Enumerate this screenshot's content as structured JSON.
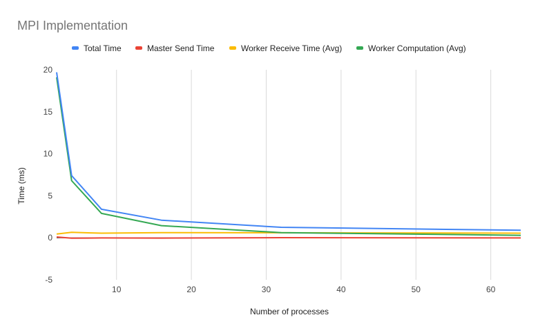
{
  "chart_data": {
    "type": "line",
    "title": "MPI Implementation",
    "xlabel": "Number of processes",
    "ylabel": "Time (ms)",
    "xlim": [
      2,
      64
    ],
    "ylim": [
      -5,
      20
    ],
    "x_ticks": [
      10,
      20,
      30,
      40,
      50,
      60
    ],
    "y_ticks": [
      -5,
      0,
      5,
      10,
      15,
      20
    ],
    "grid": "vertical",
    "legend_position": "top",
    "x": [
      2,
      4,
      8,
      16,
      32,
      64
    ],
    "series": [
      {
        "name": "Total Time",
        "color": "#4285f4",
        "values": [
          19.7,
          7.4,
          3.4,
          2.1,
          1.25,
          0.9
        ]
      },
      {
        "name": "Master Send Time",
        "color": "#ea4335",
        "values": [
          0.1,
          -0.05,
          -0.02,
          -0.03,
          0.02,
          -0.02
        ]
      },
      {
        "name": "Worker Receive Time (Avg)",
        "color": "#fbbc04",
        "values": [
          0.45,
          0.65,
          0.55,
          0.62,
          0.6,
          0.55
        ]
      },
      {
        "name": "Worker Computation (Avg)",
        "color": "#34a853",
        "values": [
          19.1,
          6.8,
          2.9,
          1.45,
          0.62,
          0.3
        ]
      }
    ]
  }
}
